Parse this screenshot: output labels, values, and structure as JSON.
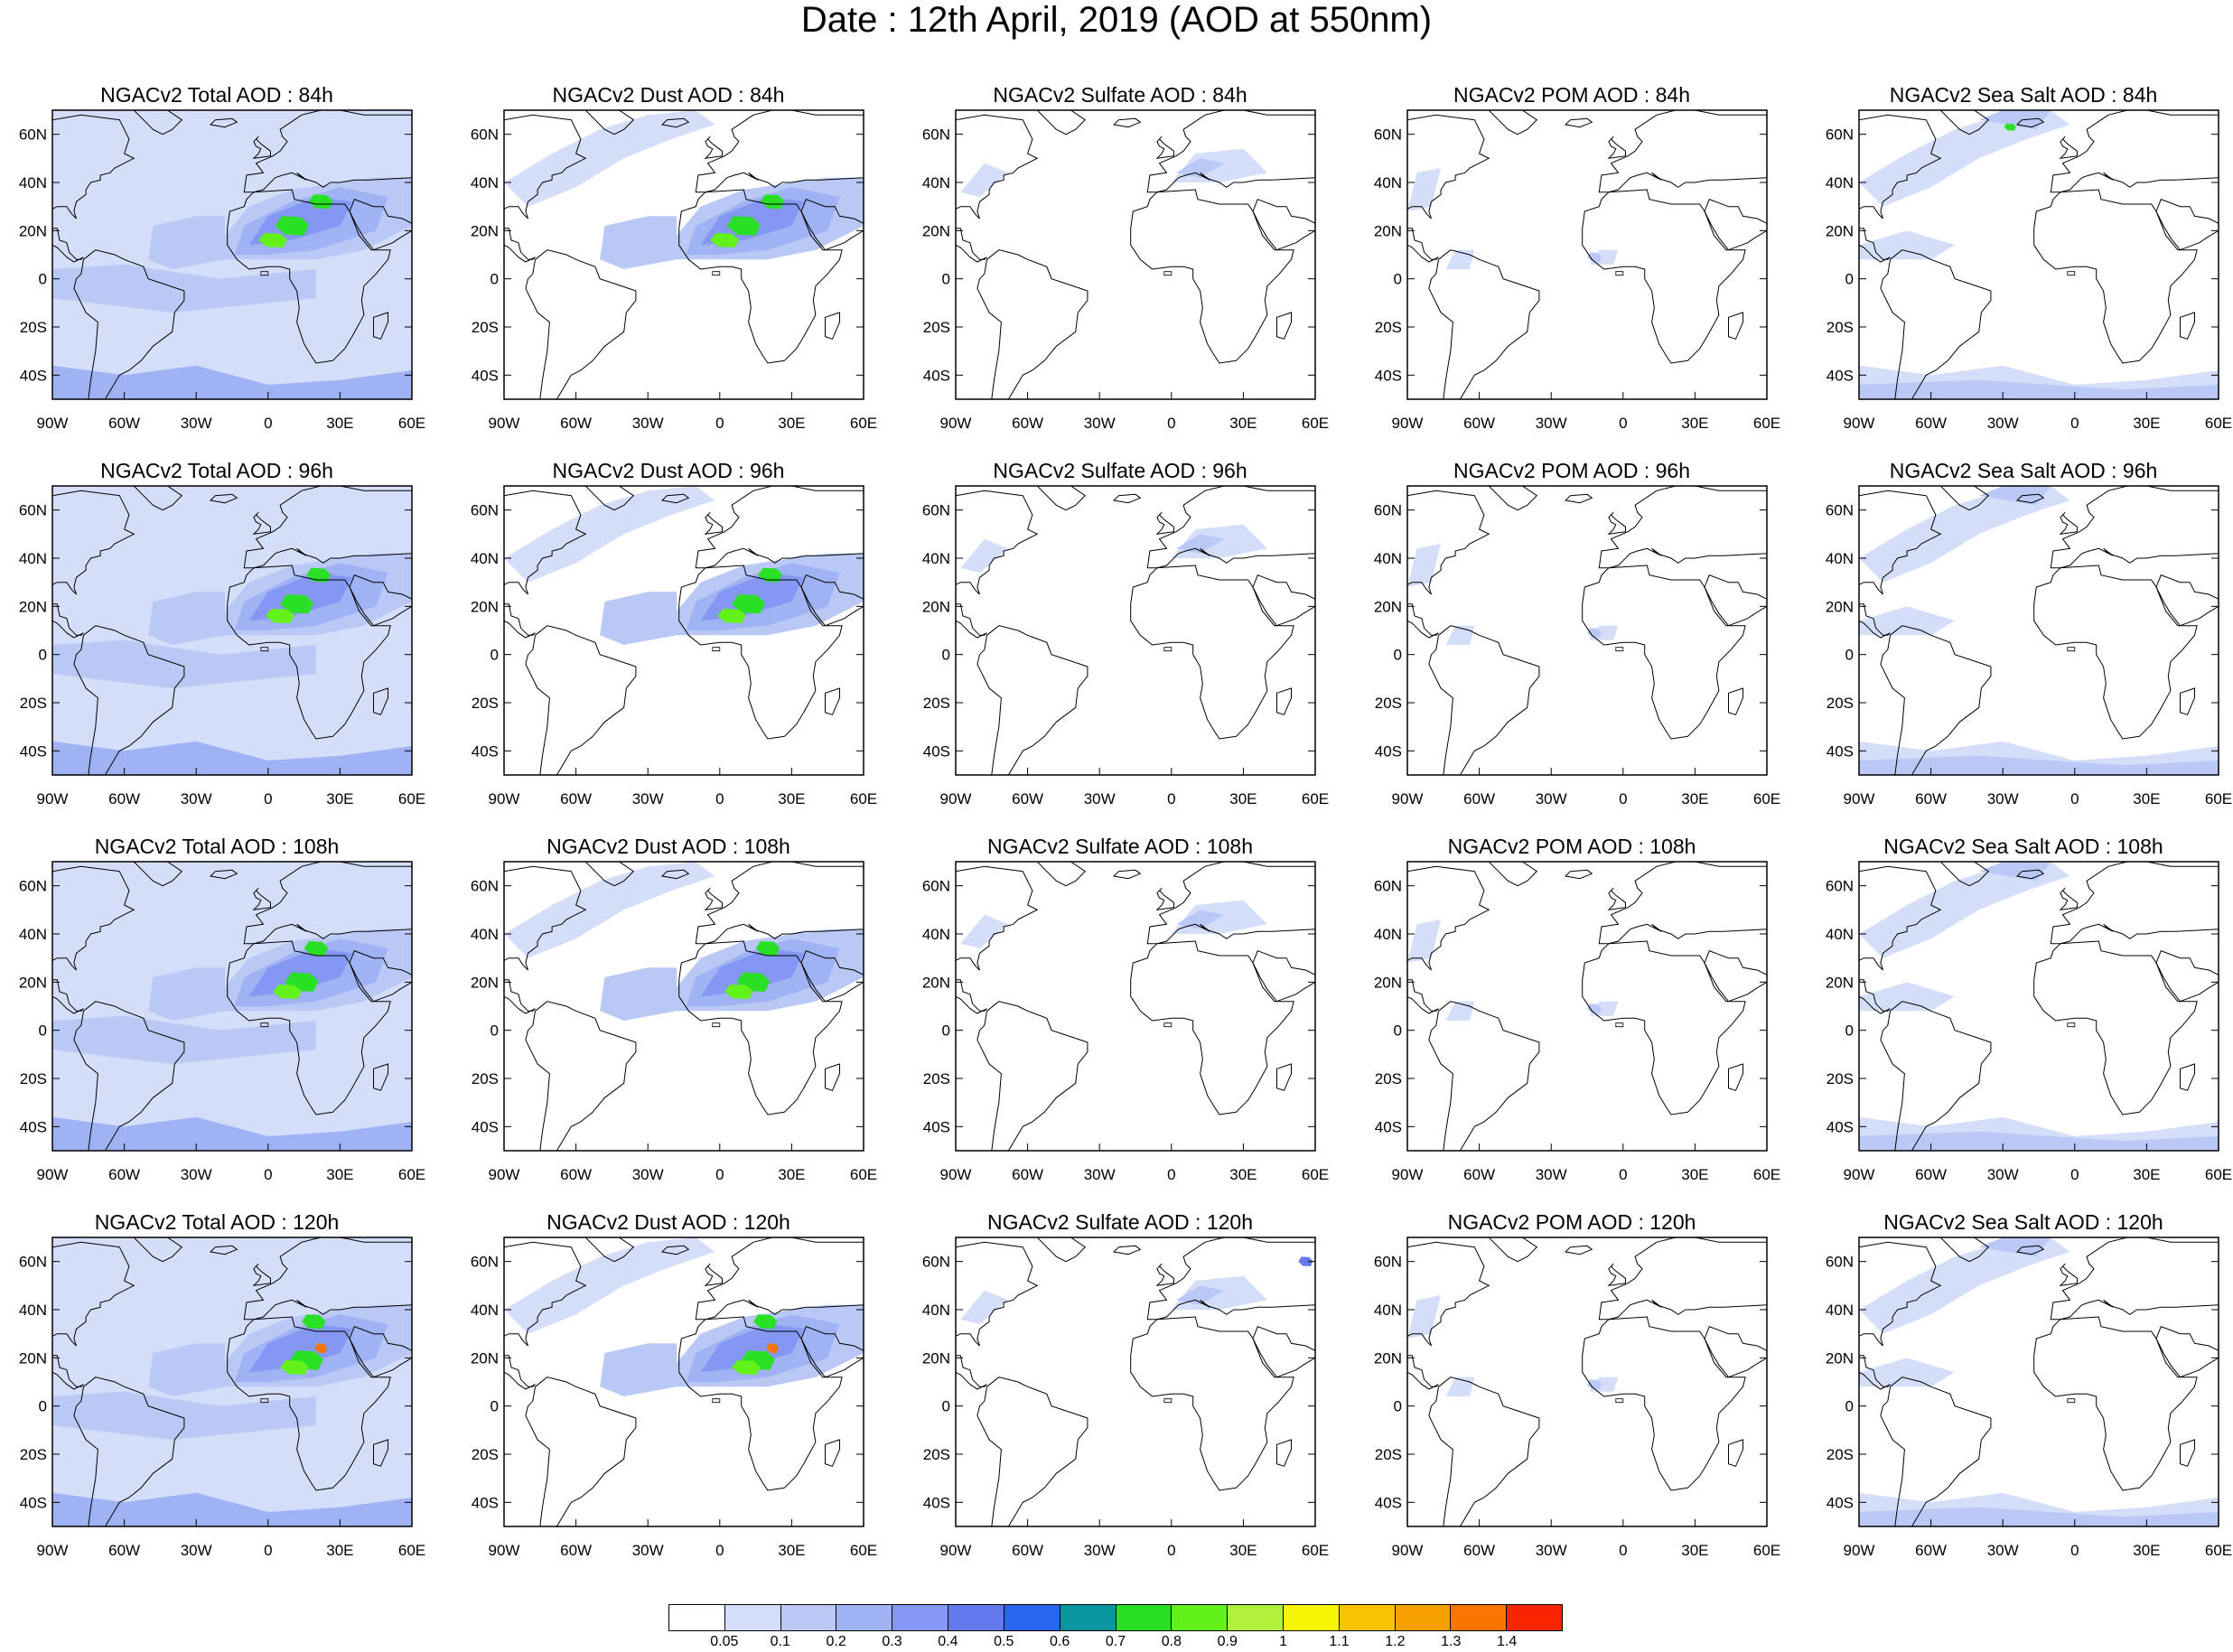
{
  "title": "Date : 12th April, 2019 (AOD at 550nm)",
  "lat_ticks": [
    "60N",
    "40N",
    "20N",
    "0",
    "20S",
    "40S"
  ],
  "lon_ticks": [
    "90W",
    "60W",
    "30W",
    "0",
    "30E",
    "60E"
  ],
  "colorbar": {
    "levels": [
      "0.05",
      "0.1",
      "0.2",
      "0.3",
      "0.4",
      "0.5",
      "0.6",
      "0.7",
      "0.8",
      "0.9",
      "1",
      "1.1",
      "1.2",
      "1.3",
      "1.4"
    ],
    "colors": [
      "#ffffff",
      "#d4def9",
      "#b9c8f5",
      "#9fb2f3",
      "#8497f2",
      "#6478ee",
      "#2866f0",
      "#0a96a0",
      "#29e024",
      "#63f11a",
      "#b1f03a",
      "#f6f604",
      "#f8c300",
      "#f8a000",
      "#f87600",
      "#f82500"
    ]
  },
  "panels": [
    {
      "title": "NGACv2 Total AOD : 84h"
    },
    {
      "title": "NGACv2 Dust AOD : 84h"
    },
    {
      "title": "NGACv2 Sulfate AOD : 84h"
    },
    {
      "title": "NGACv2 POM AOD : 84h"
    },
    {
      "title": "NGACv2 Sea Salt AOD : 84h"
    },
    {
      "title": "NGACv2 Total AOD : 96h"
    },
    {
      "title": "NGACv2 Dust AOD : 96h"
    },
    {
      "title": "NGACv2 Sulfate AOD : 96h"
    },
    {
      "title": "NGACv2 POM AOD : 96h"
    },
    {
      "title": "NGACv2 Sea Salt AOD : 96h"
    },
    {
      "title": "NGACv2 Total AOD : 108h"
    },
    {
      "title": "NGACv2 Dust AOD : 108h"
    },
    {
      "title": "NGACv2 Sulfate AOD : 108h"
    },
    {
      "title": "NGACv2 POM AOD : 108h"
    },
    {
      "title": "NGACv2 Sea Salt AOD : 108h"
    },
    {
      "title": "NGACv2 Total AOD : 120h"
    },
    {
      "title": "NGACv2 Dust AOD : 120h"
    },
    {
      "title": "NGACv2 Sulfate AOD : 120h"
    },
    {
      "title": "NGACv2 POM AOD : 120h"
    },
    {
      "title": "NGACv2 Sea Salt  AOD : 120h"
    }
  ]
}
